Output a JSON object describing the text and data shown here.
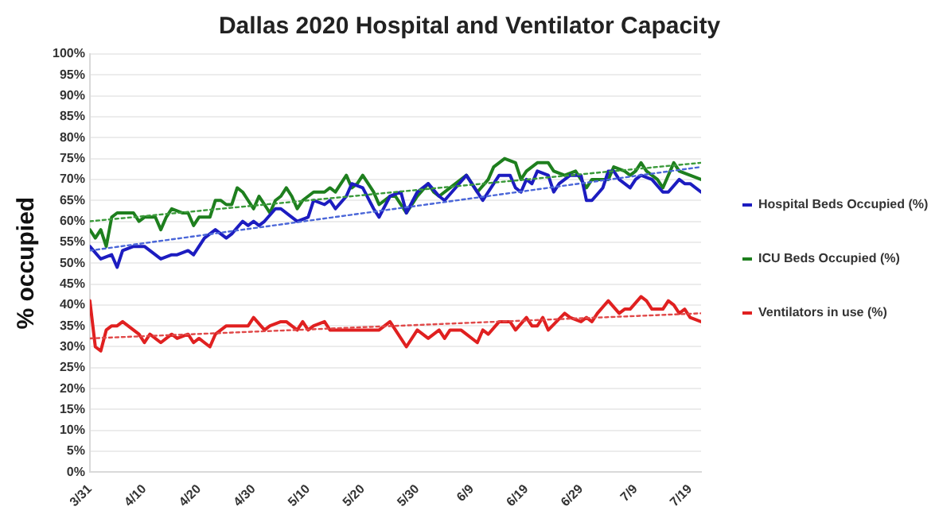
{
  "chart_data": {
    "type": "line",
    "title": "Dallas 2020 Hospital and Ventilator Capacity",
    "ylabel": "% occupied",
    "xlim": [
      "2020-03-31",
      "2020-07-21"
    ],
    "xticks": [
      {
        "value": "2020-03-31",
        "label": "3/31"
      },
      {
        "value": "2020-04-10",
        "label": "4/10"
      },
      {
        "value": "2020-04-20",
        "label": "4/20"
      },
      {
        "value": "2020-04-30",
        "label": "4/30"
      },
      {
        "value": "2020-05-10",
        "label": "5/10"
      },
      {
        "value": "2020-05-20",
        "label": "5/20"
      },
      {
        "value": "2020-05-30",
        "label": "5/30"
      },
      {
        "value": "2020-06-09",
        "label": "6/9"
      },
      {
        "value": "2020-06-19",
        "label": "6/19"
      },
      {
        "value": "2020-06-29",
        "label": "6/29"
      },
      {
        "value": "2020-07-09",
        "label": "7/9"
      },
      {
        "value": "2020-07-19",
        "label": "7/19"
      }
    ],
    "ylim": [
      0,
      100
    ],
    "yticks": [
      {
        "value": 0,
        "label": "0%"
      },
      {
        "value": 5,
        "label": "5%"
      },
      {
        "value": 10,
        "label": "10%"
      },
      {
        "value": 15,
        "label": "15%"
      },
      {
        "value": 20,
        "label": "20%"
      },
      {
        "value": 25,
        "label": "25%"
      },
      {
        "value": 30,
        "label": "30%"
      },
      {
        "value": 35,
        "label": "35%"
      },
      {
        "value": 40,
        "label": "40%"
      },
      {
        "value": 45,
        "label": "45%"
      },
      {
        "value": 50,
        "label": "50%"
      },
      {
        "value": 55,
        "label": "55%"
      },
      {
        "value": 60,
        "label": "60%"
      },
      {
        "value": 65,
        "label": "65%"
      },
      {
        "value": 70,
        "label": "70%"
      },
      {
        "value": 75,
        "label": "75%"
      },
      {
        "value": 80,
        "label": "80%"
      },
      {
        "value": 85,
        "label": "85%"
      },
      {
        "value": 90,
        "label": "90%"
      },
      {
        "value": 95,
        "label": "95%"
      },
      {
        "value": 100,
        "label": "100%"
      }
    ],
    "grid": "y",
    "legend": "right",
    "marker": "none",
    "line_style": "solid",
    "series": [
      {
        "name": "Hospital Beds Occupied (%)",
        "color": "#1c1cc0",
        "x": [
          "2020-03-31",
          "2020-04-02",
          "2020-04-04",
          "2020-04-05",
          "2020-04-06",
          "2020-04-08",
          "2020-04-10",
          "2020-04-11",
          "2020-04-13",
          "2020-04-15",
          "2020-04-16",
          "2020-04-18",
          "2020-04-19",
          "2020-04-20",
          "2020-04-21",
          "2020-04-23",
          "2020-04-24",
          "2020-04-25",
          "2020-04-26",
          "2020-04-28",
          "2020-04-29",
          "2020-04-30",
          "2020-05-01",
          "2020-05-02",
          "2020-05-04",
          "2020-05-05",
          "2020-05-07",
          "2020-05-08",
          "2020-05-10",
          "2020-05-11",
          "2020-05-13",
          "2020-05-14",
          "2020-05-15",
          "2020-05-17",
          "2020-05-18",
          "2020-05-20",
          "2020-05-22",
          "2020-05-23",
          "2020-05-25",
          "2020-05-27",
          "2020-05-28",
          "2020-05-30",
          "2020-06-01",
          "2020-06-03",
          "2020-06-04",
          "2020-06-06",
          "2020-06-08",
          "2020-06-09",
          "2020-06-11",
          "2020-06-13",
          "2020-06-14",
          "2020-06-16",
          "2020-06-17",
          "2020-06-18",
          "2020-06-19",
          "2020-06-20",
          "2020-06-21",
          "2020-06-23",
          "2020-06-24",
          "2020-06-25",
          "2020-06-27",
          "2020-06-29",
          "2020-06-30",
          "2020-07-01",
          "2020-07-03",
          "2020-07-04",
          "2020-07-05",
          "2020-07-06",
          "2020-07-08",
          "2020-07-09",
          "2020-07-10",
          "2020-07-12",
          "2020-07-14",
          "2020-07-15",
          "2020-07-17",
          "2020-07-18",
          "2020-07-19",
          "2020-07-21"
        ],
        "values": [
          54,
          51,
          52,
          49,
          53,
          54,
          54,
          53,
          51,
          52,
          52,
          53,
          52,
          54,
          56,
          58,
          57,
          56,
          57,
          60,
          59,
          60,
          59,
          60,
          63,
          63,
          61,
          60,
          61,
          65,
          64,
          65,
          63,
          66,
          69,
          68,
          63,
          61,
          66,
          67,
          62,
          67,
          69,
          66,
          65,
          68,
          71,
          69,
          65,
          69,
          71,
          71,
          68,
          67,
          70,
          69,
          72,
          71,
          67,
          69,
          71,
          71,
          65,
          65,
          68,
          72,
          72,
          70,
          68,
          70,
          71,
          70,
          67,
          67,
          70,
          69,
          69,
          67
        ]
      },
      {
        "name": "ICU Beds Occupied (%)",
        "color": "#1e7f1e",
        "x": [
          "2020-03-31",
          "2020-04-01",
          "2020-04-02",
          "2020-04-03",
          "2020-04-04",
          "2020-04-05",
          "2020-04-07",
          "2020-04-08",
          "2020-04-09",
          "2020-04-10",
          "2020-04-11",
          "2020-04-12",
          "2020-04-13",
          "2020-04-14",
          "2020-04-15",
          "2020-04-17",
          "2020-04-18",
          "2020-04-19",
          "2020-04-20",
          "2020-04-22",
          "2020-04-23",
          "2020-04-24",
          "2020-04-25",
          "2020-04-26",
          "2020-04-27",
          "2020-04-28",
          "2020-04-29",
          "2020-04-30",
          "2020-05-01",
          "2020-05-02",
          "2020-05-03",
          "2020-05-04",
          "2020-05-05",
          "2020-05-06",
          "2020-05-07",
          "2020-05-08",
          "2020-05-09",
          "2020-05-11",
          "2020-05-12",
          "2020-05-13",
          "2020-05-14",
          "2020-05-15",
          "2020-05-17",
          "2020-05-18",
          "2020-05-19",
          "2020-05-20",
          "2020-05-22",
          "2020-05-23",
          "2020-05-25",
          "2020-05-26",
          "2020-05-28",
          "2020-05-30",
          "2020-06-01",
          "2020-06-02",
          "2020-06-03",
          "2020-06-05",
          "2020-06-07",
          "2020-06-08",
          "2020-06-10",
          "2020-06-12",
          "2020-06-13",
          "2020-06-15",
          "2020-06-17",
          "2020-06-18",
          "2020-06-19",
          "2020-06-21",
          "2020-06-23",
          "2020-06-24",
          "2020-06-26",
          "2020-06-28",
          "2020-06-30",
          "2020-07-01",
          "2020-07-04",
          "2020-07-05",
          "2020-07-07",
          "2020-07-08",
          "2020-07-09",
          "2020-07-10",
          "2020-07-11",
          "2020-07-13",
          "2020-07-14",
          "2020-07-16",
          "2020-07-17",
          "2020-07-19",
          "2020-07-21"
        ],
        "values": [
          58,
          56,
          58,
          54,
          61,
          62,
          62,
          62,
          60,
          61,
          61,
          61,
          58,
          61,
          63,
          62,
          62,
          59,
          61,
          61,
          65,
          65,
          64,
          64,
          68,
          67,
          65,
          63,
          66,
          64,
          62,
          65,
          66,
          68,
          66,
          63,
          65,
          67,
          67,
          67,
          68,
          67,
          71,
          68,
          69,
          71,
          67,
          64,
          66,
          66,
          62,
          66,
          69,
          67,
          66,
          68,
          70,
          71,
          67,
          70,
          73,
          75,
          74,
          70,
          72,
          74,
          74,
          72,
          71,
          72,
          68,
          70,
          70,
          73,
          72,
          71,
          72,
          74,
          72,
          70,
          68,
          74,
          72,
          71,
          70
        ]
      },
      {
        "name": "Ventilators in use (%)",
        "color": "#e02020",
        "x": [
          "2020-03-31",
          "2020-04-01",
          "2020-04-02",
          "2020-04-03",
          "2020-04-04",
          "2020-04-05",
          "2020-04-06",
          "2020-04-08",
          "2020-04-09",
          "2020-04-10",
          "2020-04-11",
          "2020-04-13",
          "2020-04-14",
          "2020-04-15",
          "2020-04-16",
          "2020-04-18",
          "2020-04-19",
          "2020-04-20",
          "2020-04-22",
          "2020-04-23",
          "2020-04-25",
          "2020-04-26",
          "2020-04-29",
          "2020-04-30",
          "2020-05-02",
          "2020-05-03",
          "2020-05-05",
          "2020-05-06",
          "2020-05-08",
          "2020-05-09",
          "2020-05-10",
          "2020-05-11",
          "2020-05-13",
          "2020-05-14",
          "2020-05-16",
          "2020-05-20",
          "2020-05-21",
          "2020-05-23",
          "2020-05-25",
          "2020-05-26",
          "2020-05-28",
          "2020-05-30",
          "2020-06-01",
          "2020-06-03",
          "2020-06-04",
          "2020-06-05",
          "2020-06-07",
          "2020-06-08",
          "2020-06-10",
          "2020-06-11",
          "2020-06-12",
          "2020-06-14",
          "2020-06-16",
          "2020-06-17",
          "2020-06-19",
          "2020-06-20",
          "2020-06-21",
          "2020-06-22",
          "2020-06-23",
          "2020-06-26",
          "2020-06-27",
          "2020-06-29",
          "2020-06-30",
          "2020-07-01",
          "2020-07-02",
          "2020-07-04",
          "2020-07-06",
          "2020-07-07",
          "2020-07-08",
          "2020-07-10",
          "2020-07-11",
          "2020-07-12",
          "2020-07-14",
          "2020-07-15",
          "2020-07-16",
          "2020-07-17",
          "2020-07-18",
          "2020-07-19",
          "2020-07-21"
        ],
        "values": [
          41,
          30,
          29,
          34,
          35,
          35,
          36,
          34,
          33,
          31,
          33,
          31,
          32,
          33,
          32,
          33,
          31,
          32,
          30,
          33,
          35,
          35,
          35,
          37,
          34,
          35,
          36,
          36,
          34,
          36,
          34,
          35,
          36,
          34,
          34,
          34,
          34,
          34,
          36,
          34,
          30,
          34,
          32,
          34,
          32,
          34,
          34,
          33,
          31,
          34,
          33,
          36,
          36,
          34,
          37,
          35,
          35,
          37,
          34,
          38,
          37,
          36,
          37,
          36,
          38,
          41,
          38,
          39,
          39,
          42,
          41,
          39,
          39,
          41,
          40,
          38,
          39,
          37,
          36
        ]
      },
      {
        "color": "#4a66d8",
        "line_style": "dotted",
        "x": [
          "2020-03-31",
          "2020-07-21"
        ],
        "values": [
          53,
          73
        ]
      },
      {
        "color": "#3a9a3a",
        "line_style": "dotted",
        "x": [
          "2020-03-31",
          "2020-07-21"
        ],
        "values": [
          60,
          74
        ]
      },
      {
        "color": "#e04848",
        "line_style": "dotted",
        "x": [
          "2020-03-31",
          "2020-07-21"
        ],
        "values": [
          32,
          38
        ]
      }
    ]
  }
}
